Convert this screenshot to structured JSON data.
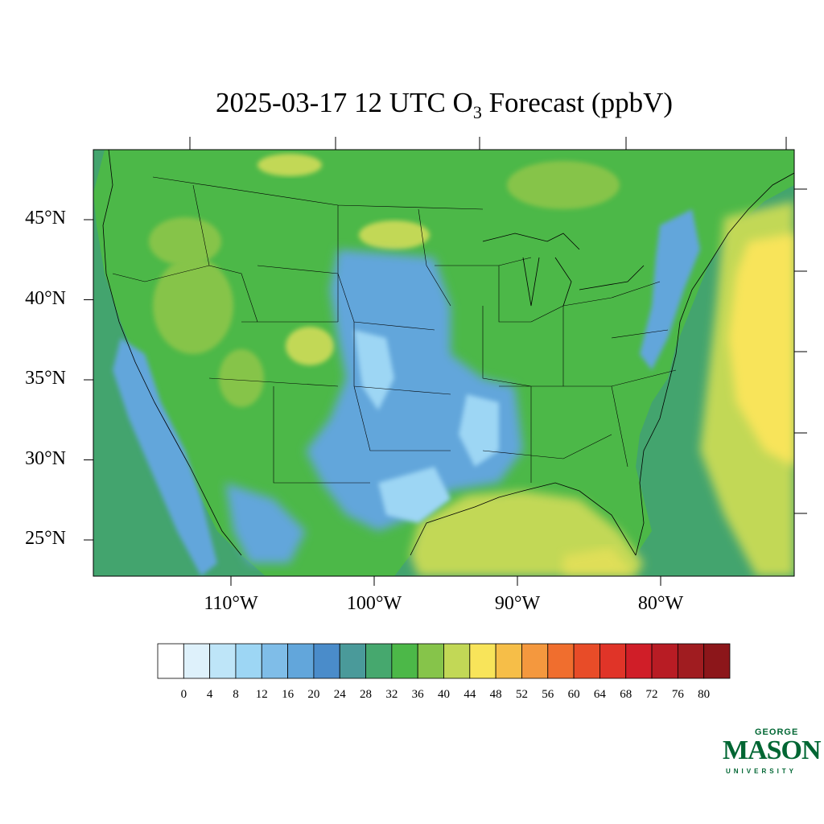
{
  "title": {
    "main": "2025-03-17 12 UTC O",
    "subscript": "3",
    "suffix": " Forecast (ppbV)"
  },
  "map": {
    "lat_labels": [
      {
        "deg": 45,
        "text": "45°N"
      },
      {
        "deg": 40,
        "text": "40°N"
      },
      {
        "deg": 35,
        "text": "35°N"
      },
      {
        "deg": 30,
        "text": "30°N"
      },
      {
        "deg": 25,
        "text": "25°N"
      }
    ],
    "lon_labels": [
      {
        "deg": -110,
        "text": "110°W"
      },
      {
        "deg": -100,
        "text": "100°W"
      },
      {
        "deg": -90,
        "text": "90°W"
      },
      {
        "deg": -80,
        "text": "80°W"
      }
    ],
    "land_color": "#4cb848",
    "ocean_color": "#43a46e"
  },
  "colorbar": {
    "levels": [
      0,
      4,
      8,
      12,
      16,
      20,
      24,
      28,
      32,
      36,
      40,
      44,
      48,
      52,
      56,
      60,
      64,
      68,
      72,
      76,
      80
    ],
    "colors": [
      "#ffffff",
      "#def1fb",
      "#bee5f8",
      "#9dd6f4",
      "#7fbde8",
      "#62a6db",
      "#4a8cca",
      "#4a9a9a",
      "#46a86e",
      "#4cb848",
      "#86c44a",
      "#c2d856",
      "#f8e45a",
      "#f6be48",
      "#f4983e",
      "#f06e2e",
      "#e84c28",
      "#e03428",
      "#d01e28",
      "#b81c24",
      "#a01c20",
      "#8c161a"
    ]
  },
  "logo": {
    "line1": "GEORGE",
    "line2": "MASON",
    "line3": "UNIVERSITY"
  }
}
